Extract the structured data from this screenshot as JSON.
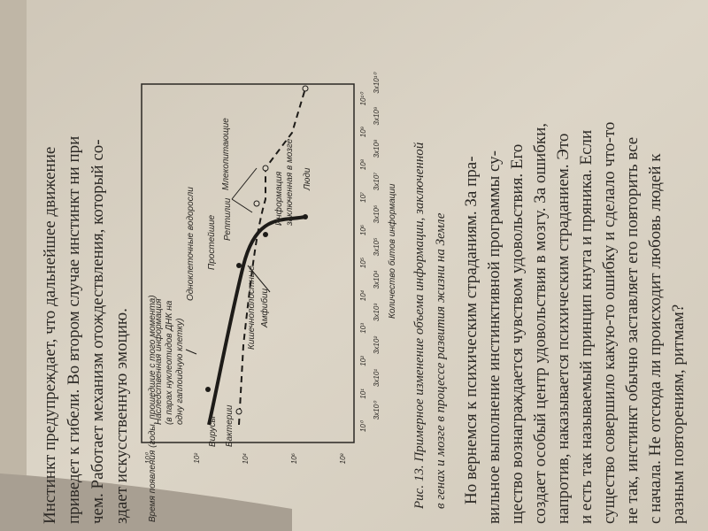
{
  "page_top": [
    "Инстинкт предупреждает, что дальнейшее движение",
    "приведет к гибели. Во втором случае инстинкт ни при",
    "чем. Работает механизм отождествления, который со-",
    "здает искусственную эмоцию."
  ],
  "figure": {
    "y_axis_title": "Время появления (годы, прошедшие с того момента)",
    "x_axis_title": "Количество битов информации",
    "x_ticks_top": [
      "10⁰",
      "10¹",
      "10²",
      "10³",
      "10⁴",
      "10⁵",
      "10⁶",
      "10⁷",
      "10⁸",
      "10⁹",
      "10¹⁰"
    ],
    "x_ticks_bottom": [
      "3x10⁰",
      "3x10¹",
      "3x10²",
      "3x10³",
      "3x10⁴",
      "3x10⁵",
      "3x10⁶",
      "3x10⁷",
      "3x10⁸",
      "3x10⁹",
      "3x10¹⁰"
    ],
    "y_ticks": [
      "10⁰",
      "10²",
      "10⁴",
      "10⁶",
      "10⁸"
    ],
    "heredity_label": [
      "Наследственная информация",
      "(в парах нуклеотидов ДНК на",
      "одну гаплоидную клетку)"
    ],
    "labels": {
      "viruses": "Вирусы",
      "bacteria": "Бактерии",
      "algae": "Одноклеточные водоросли",
      "protozoa": "Простейшие",
      "reptiles": "Рептилии",
      "coelenterates": "Кишечнополостные",
      "amphibians": "Амфибии",
      "mammals": "Млекопитающие",
      "humans": "Люди"
    },
    "brain_label": [
      "Информация",
      "заключенная в мозге"
    ]
  },
  "caption": [
    "Рис. 13. Примерное изменение объема информации, заключенной",
    "в генах и мозге в процессе развития жизни на Земле"
  ],
  "body": [
    "Но вернемся к психическим страданиям. За пра-",
    "вильное выполнение инстинктивной программы су-",
    "щество вознаграждается чувством удовольствия. Его",
    "создает особый центр удовольствия в мозгу. За ошибки,",
    "напротив, наказывается психическим страданием. Это",
    "и есть так называемый принцип кнута и пряника. Если",
    "существо совершило какую-то ошибку и сделало что-то",
    "не так, инстинкт обычно заставляет его повторить все",
    "с начала. Не отсюда ли происходит любовь людей к",
    "разным повторениям, ритмам?"
  ]
}
